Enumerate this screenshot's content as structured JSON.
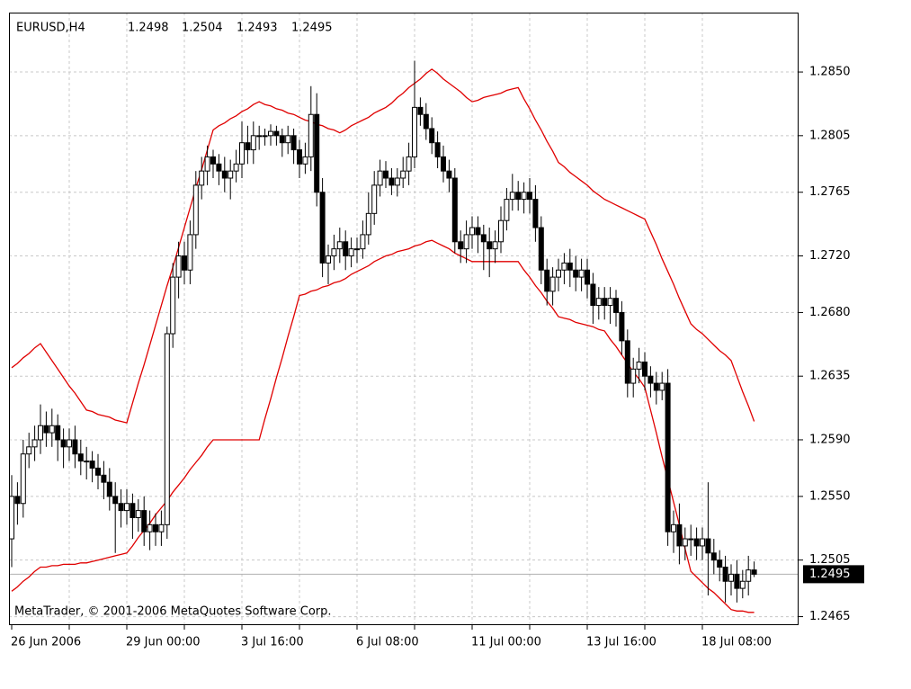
{
  "chart_data": {
    "type": "candlestick",
    "symbol": "EURUSD,H4",
    "copyright": "MetaTrader, © 2001-2006 MetaQuotes Software Corp.",
    "categories": [
      "26 Jun 2006",
      null,
      null,
      null,
      null,
      null,
      null,
      null,
      null,
      null,
      null,
      null,
      null,
      null,
      null,
      null,
      null,
      null,
      null,
      null,
      "29 Jun 00:00",
      null,
      null,
      null,
      null,
      null,
      null,
      null,
      null,
      null,
      null,
      null,
      null,
      null,
      null,
      null,
      null,
      null,
      null,
      null,
      "3 Jul 16:00",
      null,
      null,
      null,
      null,
      null,
      null,
      null,
      null,
      null,
      null,
      null,
      null,
      null,
      null,
      null,
      null,
      null,
      null,
      null,
      "6 Jul 08:00",
      null,
      null,
      null,
      null,
      null,
      null,
      null,
      null,
      null,
      null,
      null,
      null,
      null,
      null,
      null,
      null,
      null,
      null,
      null,
      "11 Jul 00:00",
      null,
      null,
      null,
      null,
      null,
      null,
      null,
      null,
      null,
      null,
      null,
      null,
      null,
      null,
      null,
      null,
      null,
      null,
      null,
      "13 Jul 16:00",
      null,
      null,
      null,
      null,
      null,
      null,
      null,
      null,
      null,
      null,
      null,
      null,
      null,
      null,
      null,
      null,
      null,
      null,
      null,
      "18 Jul 08:00",
      null,
      null,
      null,
      null,
      null,
      null,
      null,
      null,
      null
    ],
    "open": [
      1.252,
      1.255,
      1.2545,
      1.258,
      1.2585,
      1.259,
      1.26,
      1.2595,
      1.26,
      1.259,
      1.2585,
      1.259,
      1.258,
      1.2575,
      1.2575,
      1.257,
      1.2565,
      1.256,
      1.255,
      1.2545,
      1.254,
      1.2545,
      1.2535,
      1.254,
      1.2525,
      1.253,
      1.2525,
      1.253,
      1.2665,
      1.2705,
      1.272,
      1.271,
      1.2735,
      1.277,
      1.278,
      1.279,
      1.2785,
      1.278,
      1.2775,
      1.278,
      1.2785,
      1.28,
      1.2795,
      1.2805,
      1.2805,
      1.2805,
      1.2808,
      1.2805,
      1.28,
      1.2805,
      1.2795,
      1.2785,
      1.279,
      1.282,
      1.2765,
      1.2715,
      1.272,
      1.2725,
      1.273,
      1.272,
      1.2725,
      1.2725,
      1.2735,
      1.275,
      1.277,
      1.278,
      1.2775,
      1.277,
      1.2775,
      1.278,
      1.279,
      1.2825,
      1.282,
      1.281,
      1.28,
      1.279,
      1.278,
      1.2775,
      1.273,
      1.2725,
      1.2735,
      1.274,
      1.2735,
      1.273,
      1.2725,
      1.273,
      1.2745,
      1.276,
      1.2765,
      1.276,
      1.2765,
      1.276,
      1.274,
      1.271,
      1.2695,
      1.2705,
      1.271,
      1.2715,
      1.271,
      1.2705,
      1.271,
      1.27,
      1.2685,
      1.269,
      1.2685,
      1.269,
      1.268,
      1.266,
      1.263,
      1.264,
      1.2645,
      1.2635,
      1.263,
      1.2625,
      1.263,
      1.2525,
      1.253,
      1.2515,
      1.252,
      1.252,
      1.2515,
      1.252,
      1.251,
      1.2505,
      1.25,
      1.249,
      1.2495,
      1.2485,
      1.249,
      1.2498
    ],
    "high": [
      1.2565,
      1.256,
      1.259,
      1.2595,
      1.26,
      1.2615,
      1.261,
      1.2612,
      1.2608,
      1.2598,
      1.2598,
      1.26,
      1.259,
      1.2585,
      1.2582,
      1.258,
      1.2575,
      1.257,
      1.256,
      1.2555,
      1.2555,
      1.2552,
      1.2548,
      1.255,
      1.254,
      1.2538,
      1.254,
      1.267,
      1.2715,
      1.273,
      1.273,
      1.2745,
      1.278,
      1.279,
      1.2798,
      1.2795,
      1.2792,
      1.279,
      1.2788,
      1.2795,
      1.2815,
      1.2812,
      1.2815,
      1.2812,
      1.281,
      1.2813,
      1.2812,
      1.281,
      1.2812,
      1.281,
      1.2802,
      1.28,
      1.284,
      1.2835,
      1.2775,
      1.2728,
      1.2735,
      1.274,
      1.2738,
      1.2733,
      1.2733,
      1.2745,
      1.2765,
      1.278,
      1.2788,
      1.2787,
      1.2782,
      1.2782,
      1.279,
      1.28,
      1.2858,
      1.2832,
      1.2828,
      1.2818,
      1.2808,
      1.2798,
      1.2788,
      1.2782,
      1.2738,
      1.2745,
      1.2748,
      1.2748,
      1.2742,
      1.274,
      1.2738,
      1.2755,
      1.2768,
      1.2778,
      1.2773,
      1.2772,
      1.2775,
      1.277,
      1.2748,
      1.2718,
      1.2712,
      1.2718,
      1.2722,
      1.2725,
      1.272,
      1.2718,
      1.2718,
      1.2708,
      1.2698,
      1.2698,
      1.2698,
      1.2696,
      1.2688,
      1.2668,
      1.2648,
      1.2655,
      1.2652,
      1.2642,
      1.2638,
      1.2638,
      1.264,
      1.254,
      1.2545,
      1.2528,
      1.253,
      1.2528,
      1.2528,
      1.256,
      1.252,
      1.2512,
      1.2508,
      1.2502,
      1.2505,
      1.2498,
      1.2508,
      1.2504
    ],
    "low": [
      1.25,
      1.253,
      1.2535,
      1.257,
      1.2575,
      1.258,
      1.2585,
      1.2585,
      1.2575,
      1.257,
      1.2575,
      1.257,
      1.2565,
      1.2562,
      1.256,
      1.2555,
      1.2548,
      1.254,
      1.251,
      1.2528,
      1.253,
      1.252,
      1.2525,
      1.2515,
      1.2512,
      1.2515,
      1.2515,
      1.252,
      1.2655,
      1.269,
      1.27,
      1.27,
      1.2725,
      1.276,
      1.277,
      1.2775,
      1.277,
      1.2765,
      1.276,
      1.2772,
      1.2775,
      1.2785,
      1.2785,
      1.2795,
      1.2798,
      1.2798,
      1.2798,
      1.279,
      1.2792,
      1.2785,
      1.2775,
      1.2778,
      1.278,
      1.2755,
      1.2705,
      1.27,
      1.271,
      1.2715,
      1.271,
      1.2712,
      1.2715,
      1.2718,
      1.2728,
      1.2742,
      1.2762,
      1.2768,
      1.2763,
      1.2762,
      1.2768,
      1.277,
      1.2782,
      1.2812,
      1.2802,
      1.2792,
      1.2782,
      1.2772,
      1.2765,
      1.2722,
      1.2715,
      1.2715,
      1.2725,
      1.2722,
      1.271,
      1.2705,
      1.2715,
      1.2722,
      1.2738,
      1.2752,
      1.2752,
      1.275,
      1.275,
      1.273,
      1.27,
      1.2685,
      1.2685,
      1.2695,
      1.27,
      1.2698,
      1.2695,
      1.2695,
      1.269,
      1.2672,
      1.2675,
      1.2675,
      1.2672,
      1.267,
      1.265,
      1.262,
      1.262,
      1.263,
      1.2625,
      1.262,
      1.2615,
      1.2618,
      1.2515,
      1.251,
      1.2502,
      1.2505,
      1.2508,
      1.2505,
      1.2505,
      1.248,
      1.2495,
      1.249,
      1.2475,
      1.248,
      1.2475,
      1.2478,
      1.248,
      1.2493
    ],
    "close": [
      1.255,
      1.2545,
      1.258,
      1.2585,
      1.259,
      1.26,
      1.2595,
      1.26,
      1.259,
      1.2585,
      1.259,
      1.258,
      1.2575,
      1.2575,
      1.257,
      1.2565,
      1.256,
      1.255,
      1.2545,
      1.254,
      1.2545,
      1.2535,
      1.254,
      1.2525,
      1.253,
      1.2525,
      1.253,
      1.2665,
      1.2705,
      1.272,
      1.271,
      1.2735,
      1.277,
      1.278,
      1.279,
      1.2785,
      1.278,
      1.2775,
      1.278,
      1.2785,
      1.28,
      1.2795,
      1.2805,
      1.2805,
      1.2805,
      1.2808,
      1.2805,
      1.28,
      1.2805,
      1.2795,
      1.2785,
      1.279,
      1.282,
      1.2765,
      1.2715,
      1.272,
      1.2725,
      1.273,
      1.272,
      1.2725,
      1.2725,
      1.2735,
      1.275,
      1.277,
      1.278,
      1.2775,
      1.277,
      1.2775,
      1.278,
      1.279,
      1.2825,
      1.282,
      1.281,
      1.28,
      1.279,
      1.278,
      1.2775,
      1.273,
      1.2725,
      1.2735,
      1.274,
      1.2735,
      1.273,
      1.2725,
      1.273,
      1.2745,
      1.276,
      1.2765,
      1.276,
      1.2765,
      1.276,
      1.274,
      1.271,
      1.2695,
      1.2705,
      1.271,
      1.2715,
      1.271,
      1.2705,
      1.271,
      1.27,
      1.2685,
      1.269,
      1.2685,
      1.269,
      1.268,
      1.266,
      1.263,
      1.264,
      1.2645,
      1.2635,
      1.263,
      1.2625,
      1.263,
      1.2525,
      1.253,
      1.2515,
      1.252,
      1.252,
      1.2515,
      1.252,
      1.251,
      1.2505,
      1.25,
      1.249,
      1.2495,
      1.2485,
      1.249,
      1.2498,
      1.2495
    ],
    "candle_color": "#000000",
    "envelopes": {
      "color": "#e00000",
      "upper": [
        1.2641,
        1.2644,
        1.2648,
        1.2651,
        1.2655,
        1.2658,
        1.2652,
        1.2646,
        1.264,
        1.2634,
        1.2628,
        1.2623,
        1.2617,
        1.2611,
        1.261,
        1.2608,
        1.2607,
        1.2606,
        1.2604,
        1.2603,
        1.2602,
        1.2616,
        1.263,
        1.2643,
        1.2657,
        1.2671,
        1.2685,
        1.2699,
        1.2712,
        1.2726,
        1.274,
        1.2754,
        1.2768,
        1.2781,
        1.2795,
        1.2809,
        1.2812,
        1.2814,
        1.2817,
        1.2819,
        1.2822,
        1.2824,
        1.2827,
        1.2829,
        1.2827,
        1.2826,
        1.2824,
        1.2823,
        1.2821,
        1.282,
        1.2818,
        1.2816,
        1.2815,
        1.2813,
        1.2812,
        1.281,
        1.2809,
        1.2807,
        1.2809,
        1.2812,
        1.2814,
        1.2816,
        1.2818,
        1.2821,
        1.2823,
        1.2825,
        1.2828,
        1.2832,
        1.2835,
        1.2839,
        1.2842,
        1.2845,
        1.2849,
        1.2852,
        1.2849,
        1.2845,
        1.2842,
        1.2839,
        1.2836,
        1.2832,
        1.2829,
        1.283,
        1.2832,
        1.2833,
        1.2834,
        1.2835,
        1.2837,
        1.2838,
        1.2839,
        1.2831,
        1.2824,
        1.2816,
        1.2809,
        1.2801,
        1.2794,
        1.2786,
        1.2783,
        1.2779,
        1.2776,
        1.2773,
        1.277,
        1.2766,
        1.2763,
        1.276,
        1.2758,
        1.2756,
        1.2754,
        1.2752,
        1.275,
        1.2748,
        1.2746,
        1.2737,
        1.2728,
        1.2718,
        1.2709,
        1.27,
        1.269,
        1.2681,
        1.2672,
        1.2668,
        1.2665,
        1.2661,
        1.2657,
        1.2653,
        1.265,
        1.2646,
        1.2635,
        1.2624,
        1.2614,
        1.2603
      ],
      "lower": [
        1.2483,
        1.2486,
        1.249,
        1.2493,
        1.2497,
        1.25,
        1.25,
        1.2501,
        1.2501,
        1.2502,
        1.2502,
        1.2502,
        1.2503,
        1.2503,
        1.2504,
        1.2505,
        1.2506,
        1.2507,
        1.2508,
        1.2509,
        1.251,
        1.2515,
        1.2521,
        1.2526,
        1.2531,
        1.2537,
        1.2542,
        1.2547,
        1.2553,
        1.2558,
        1.2563,
        1.2569,
        1.2574,
        1.2579,
        1.2585,
        1.259,
        1.259,
        1.259,
        1.259,
        1.259,
        1.259,
        1.259,
        1.259,
        1.259,
        1.2605,
        1.2619,
        1.2634,
        1.2648,
        1.2663,
        1.2677,
        1.2692,
        1.2693,
        1.2695,
        1.2696,
        1.2698,
        1.2699,
        1.2701,
        1.2702,
        1.2704,
        1.2707,
        1.2709,
        1.2711,
        1.2713,
        1.2716,
        1.2718,
        1.272,
        1.2721,
        1.2723,
        1.2724,
        1.2725,
        1.2727,
        1.2728,
        1.273,
        1.2731,
        1.2729,
        1.2727,
        1.2725,
        1.2722,
        1.272,
        1.2718,
        1.2716,
        1.2716,
        1.2716,
        1.2716,
        1.2716,
        1.2716,
        1.2716,
        1.2716,
        1.2716,
        1.271,
        1.2705,
        1.2699,
        1.2694,
        1.2688,
        1.2683,
        1.2677,
        1.2676,
        1.2675,
        1.2673,
        1.2672,
        1.2671,
        1.267,
        1.2668,
        1.2667,
        1.2661,
        1.2656,
        1.265,
        1.2644,
        1.2638,
        1.2633,
        1.2627,
        1.2611,
        1.2595,
        1.2578,
        1.2562,
        1.2546,
        1.253,
        1.2513,
        1.2497,
        1.2493,
        1.2489,
        1.2485,
        1.2482,
        1.2478,
        1.2474,
        1.247,
        1.2469,
        1.2469,
        1.2468,
        1.2468
      ]
    },
    "ylim": [
      1.2459,
      1.2892
    ],
    "yticks": [
      1.2465,
      1.2505,
      {
        "value": 1.255,
        "label": "1.2550"
      },
      {
        "value": 1.259,
        "label": "1.2590"
      },
      1.2635,
      {
        "value": 1.268,
        "label": "1.2680"
      },
      {
        "value": 1.272,
        "label": "1.2720"
      },
      1.2765,
      1.2805,
      {
        "value": 1.285,
        "label": "1.2850"
      }
    ],
    "grid": true
  }
}
